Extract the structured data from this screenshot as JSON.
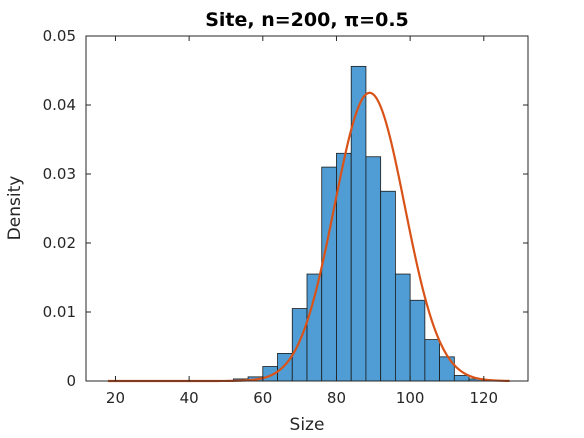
{
  "chart_data": {
    "type": "bar",
    "title": "Site, n=200, π=0.5",
    "xlabel": "Size",
    "ylabel": "Density",
    "xlim": [
      12,
      132
    ],
    "ylim": [
      0,
      0.05
    ],
    "xticks": [
      20,
      40,
      60,
      80,
      100,
      120
    ],
    "xtick_labels": [
      "20",
      "40",
      "60",
      "80",
      "100",
      "120"
    ],
    "yticks": [
      0,
      0.01,
      0.02,
      0.03,
      0.04,
      0.05
    ],
    "ytick_labels": [
      "0",
      "0.01",
      "0.02",
      "0.03",
      "0.04",
      "0.05"
    ],
    "grid": false,
    "bins": {
      "edges": [
        52,
        56,
        60,
        64,
        68,
        72,
        76,
        80,
        84,
        88,
        92,
        96,
        100,
        104,
        108,
        112,
        116,
        120,
        124
      ],
      "values": [
        0.0003,
        0.0006,
        0.0021,
        0.004,
        0.0105,
        0.0155,
        0.031,
        0.033,
        0.0456,
        0.0325,
        0.0275,
        0.0155,
        0.0117,
        0.006,
        0.0035,
        0.0008,
        0.0003,
        0.0001
      ]
    },
    "series": [
      {
        "type": "line",
        "curve": "normal-pdf",
        "mean": 89,
        "sd": 9.55,
        "x_range": [
          18,
          127
        ]
      }
    ],
    "colors": {
      "bar_fill": "#4F9DD4",
      "bar_edge": "#1a1a1a",
      "curve": "#D95319",
      "axis": "#262626"
    }
  }
}
